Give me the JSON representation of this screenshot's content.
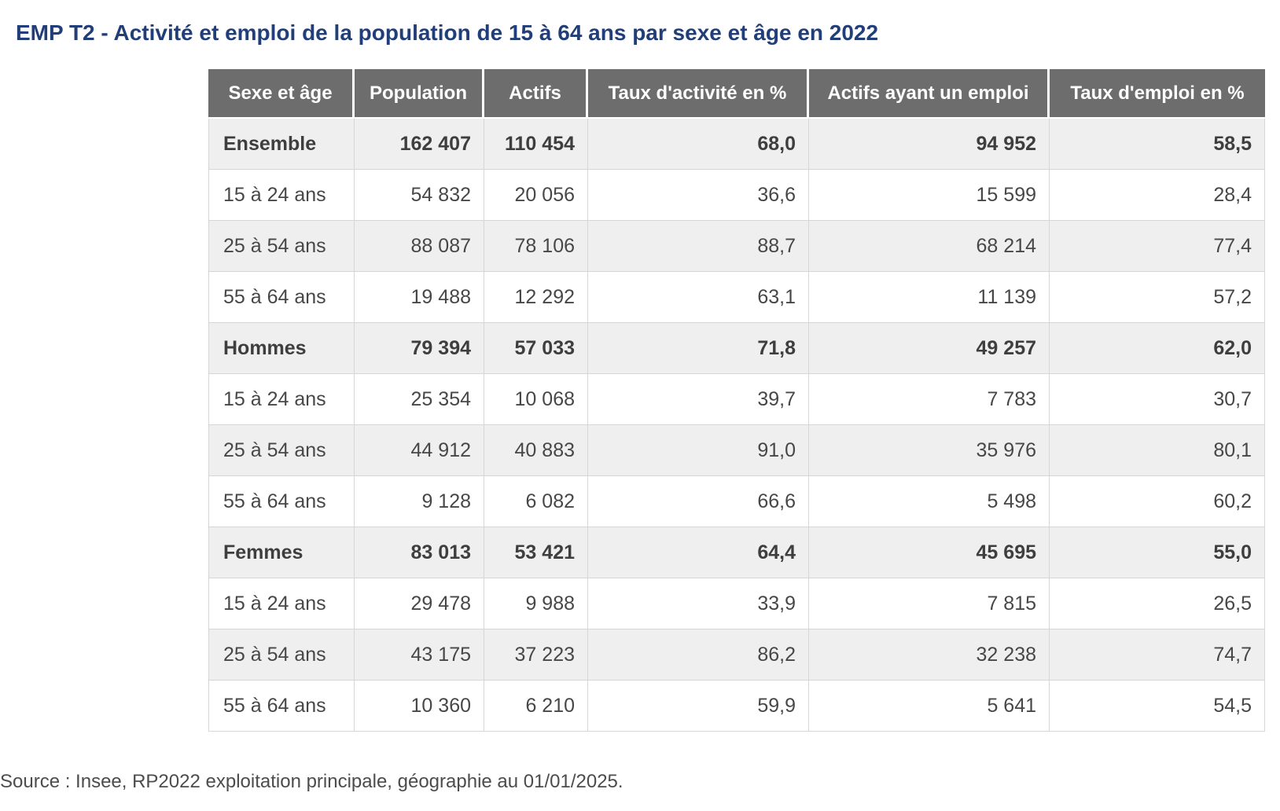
{
  "title": "EMP T2 - Activité et emploi de la population de 15 à 64 ans par sexe et âge en 2022",
  "source": "Source : Insee, RP2022 exploitation principale, géographie au 01/01/2025.",
  "chart_data": {
    "type": "table",
    "title": "EMP T2 - Activité et emploi de la population de 15 à 64 ans par sexe et âge en 2022",
    "columns": [
      "Sexe et âge",
      "Population",
      "Actifs",
      "Taux d'activité en %",
      "Actifs ayant un emploi",
      "Taux d'emploi en %"
    ],
    "rows": [
      {
        "label": "Ensemble",
        "bold": true,
        "values": [
          "162 407",
          "110 454",
          "68,0",
          "94 952",
          "58,5"
        ]
      },
      {
        "label": "15 à 24 ans",
        "bold": false,
        "values": [
          "54 832",
          "20 056",
          "36,6",
          "15 599",
          "28,4"
        ]
      },
      {
        "label": "25 à 54 ans",
        "bold": false,
        "values": [
          "88 087",
          "78 106",
          "88,7",
          "68 214",
          "77,4"
        ]
      },
      {
        "label": "55 à 64 ans",
        "bold": false,
        "values": [
          "19 488",
          "12 292",
          "63,1",
          "11 139",
          "57,2"
        ]
      },
      {
        "label": "Hommes",
        "bold": true,
        "values": [
          "79 394",
          "57 033",
          "71,8",
          "49 257",
          "62,0"
        ]
      },
      {
        "label": "15 à 24 ans",
        "bold": false,
        "values": [
          "25 354",
          "10 068",
          "39,7",
          "7 783",
          "30,7"
        ]
      },
      {
        "label": "25 à 54 ans",
        "bold": false,
        "values": [
          "44 912",
          "40 883",
          "91,0",
          "35 976",
          "80,1"
        ]
      },
      {
        "label": "55 à 64 ans",
        "bold": false,
        "values": [
          "9 128",
          "6 082",
          "66,6",
          "5 498",
          "60,2"
        ]
      },
      {
        "label": "Femmes",
        "bold": true,
        "values": [
          "83 013",
          "53 421",
          "64,4",
          "45 695",
          "55,0"
        ]
      },
      {
        "label": "15 à 24 ans",
        "bold": false,
        "values": [
          "29 478",
          "9 988",
          "33,9",
          "7 815",
          "26,5"
        ]
      },
      {
        "label": "25 à 54 ans",
        "bold": false,
        "values": [
          "43 175",
          "37 223",
          "86,2",
          "32 238",
          "74,7"
        ]
      },
      {
        "label": "55 à 64 ans",
        "bold": false,
        "values": [
          "10 360",
          "6 210",
          "59,9",
          "5 641",
          "54,5"
        ]
      }
    ],
    "source": "Source : Insee, RP2022 exploitation principale, géographie au 01/01/2025."
  },
  "colors": {
    "title_text": "#213e78",
    "header_bg": "#6d6d6d",
    "header_text": "#ffffff",
    "row_stripe_bg": "#efefef",
    "row_bg": "#ffffff",
    "cell_border": "#d6d6d6",
    "body_text": "#474747",
    "bottom_bar_bg": "#f3f3f3"
  }
}
